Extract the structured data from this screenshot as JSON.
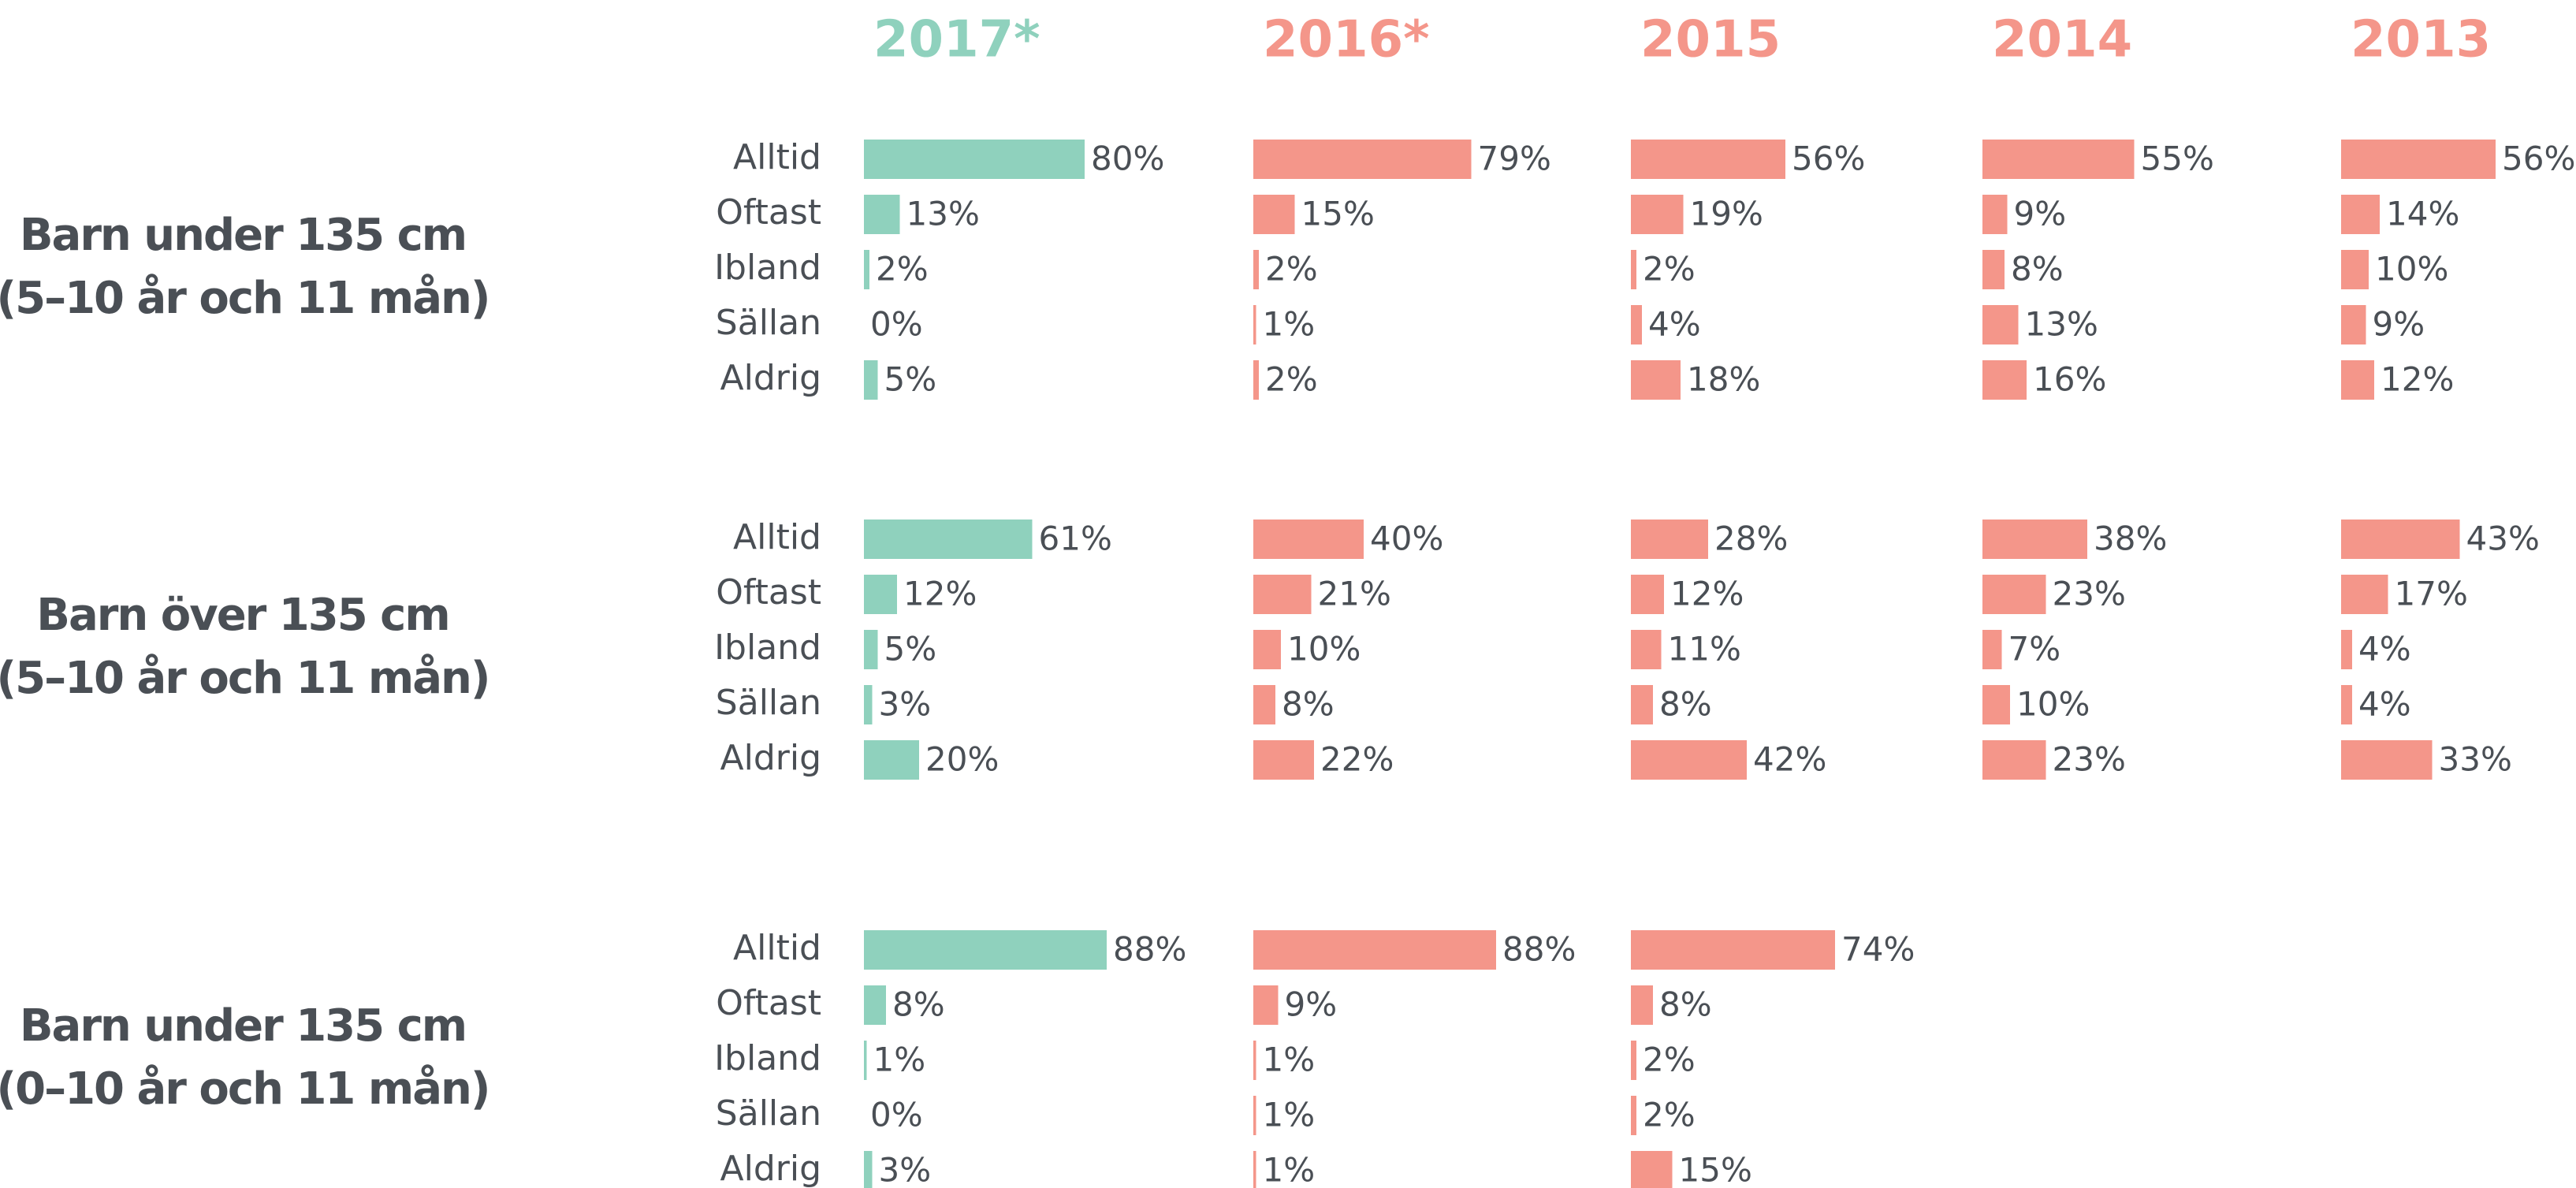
{
  "chart_data": {
    "type": "bar",
    "orientation": "horizontal",
    "categories": [
      "Alltid",
      "Oftast",
      "Ibland",
      "Sällan",
      "Aldrig"
    ],
    "groups": [
      {
        "label": [
          "Barn under 135 cm",
          "(5–10 år och 11 mån)"
        ],
        "series": [
          {
            "name": "2017*",
            "color": "#8fd1bd",
            "values": [
              80,
              13,
              2,
              0,
              5
            ],
            "value_labels": [
              "80%",
              "13%",
              "2%",
              "0%",
              "5%"
            ]
          },
          {
            "name": "2016*",
            "color": "#f4968a",
            "values": [
              79,
              15,
              2,
              1,
              2
            ],
            "value_labels": [
              "79%",
              "15%",
              "2%",
              "1%",
              "2%"
            ]
          },
          {
            "name": "2015",
            "color": "#f4968a",
            "values": [
              56,
              19,
              2,
              4,
              18
            ],
            "value_labels": [
              "56%",
              "19%",
              "2%",
              "4%",
              "18%"
            ]
          },
          {
            "name": "2014",
            "color": "#f4968a",
            "values": [
              55,
              9,
              8,
              13,
              16
            ],
            "value_labels": [
              "55%",
              "9%",
              "8%",
              "13%",
              "16%"
            ]
          },
          {
            "name": "2013",
            "color": "#f4968a",
            "values": [
              56,
              14,
              10,
              9,
              12
            ],
            "value_labels": [
              "56%",
              "14%",
              "10%",
              "9%",
              "12%"
            ]
          }
        ]
      },
      {
        "label": [
          "Barn över 135 cm",
          "(5–10 år och 11 mån)"
        ],
        "series": [
          {
            "name": "2017*",
            "color": "#8fd1bd",
            "values": [
              61,
              12,
              5,
              3,
              20
            ],
            "value_labels": [
              "61%",
              "12%",
              "5%",
              "3%",
              "20%"
            ]
          },
          {
            "name": "2016*",
            "color": "#f4968a",
            "values": [
              40,
              21,
              10,
              8,
              22
            ],
            "value_labels": [
              "40%",
              "21%",
              "10%",
              "8%",
              "22%"
            ]
          },
          {
            "name": "2015",
            "color": "#f4968a",
            "values": [
              28,
              12,
              11,
              8,
              42
            ],
            "value_labels": [
              "28%",
              "12%",
              "11%",
              "8%",
              "42%"
            ]
          },
          {
            "name": "2014",
            "color": "#f4968a",
            "values": [
              38,
              23,
              7,
              10,
              23
            ],
            "value_labels": [
              "38%",
              "23%",
              "7%",
              "10%",
              "23%"
            ]
          },
          {
            "name": "2013",
            "color": "#f4968a",
            "values": [
              43,
              17,
              4,
              4,
              33
            ],
            "value_labels": [
              "43%",
              "17%",
              "4%",
              "4%",
              "33%"
            ]
          }
        ]
      },
      {
        "label": [
          "Barn under 135 cm",
          "(0–10 år och 11 mån)"
        ],
        "series": [
          {
            "name": "2017*",
            "color": "#8fd1bd",
            "values": [
              88,
              8,
              1,
              0,
              3
            ],
            "value_labels": [
              "88%",
              "8%",
              "1%",
              "0%",
              "3%"
            ]
          },
          {
            "name": "2016*",
            "color": "#f4968a",
            "values": [
              88,
              9,
              1,
              1,
              1
            ],
            "value_labels": [
              "88%",
              "9%",
              "1%",
              "1%",
              "1%"
            ]
          },
          {
            "name": "2015",
            "color": "#f4968a",
            "values": [
              74,
              8,
              2,
              2,
              15
            ],
            "value_labels": [
              "74%",
              "8%",
              "2%",
              "2%",
              "15%"
            ]
          }
        ]
      }
    ]
  }
}
